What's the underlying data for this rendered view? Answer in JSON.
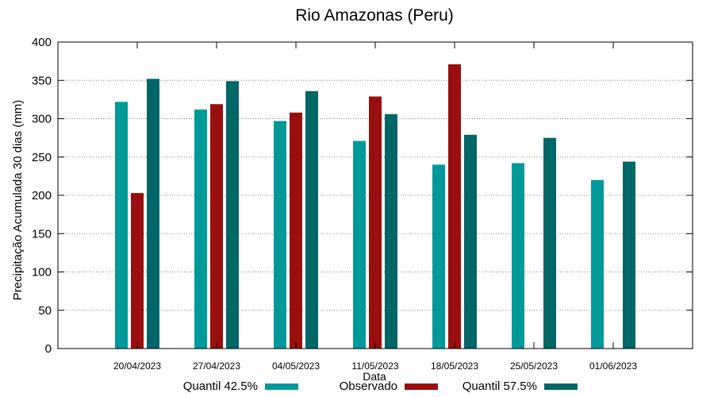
{
  "chart_data": {
    "type": "bar",
    "title": "Rio Amazonas (Peru)",
    "xlabel": "Data",
    "ylabel": "Precipitação Acumulada 30 dias (mm)",
    "ylim": [
      0,
      400
    ],
    "yticks": [
      0,
      50,
      100,
      150,
      200,
      250,
      300,
      350,
      400
    ],
    "grid": true,
    "legend_position": "bottom",
    "categories": [
      "20/04/2023",
      "27/04/2023",
      "04/05/2023",
      "11/05/2023",
      "18/05/2023",
      "25/05/2023",
      "01/06/2023"
    ],
    "series": [
      {
        "name": "Quantil 42.5%",
        "color": "#009999",
        "values": [
          322,
          312,
          297,
          271,
          240,
          242,
          220
        ]
      },
      {
        "name": "Observado",
        "color": "#990f0f",
        "values": [
          203,
          319,
          308,
          329,
          371,
          null,
          null
        ]
      },
      {
        "name": "Quantil 57.5%",
        "color": "#006666",
        "values": [
          352,
          349,
          336,
          306,
          279,
          275,
          244
        ]
      }
    ]
  }
}
